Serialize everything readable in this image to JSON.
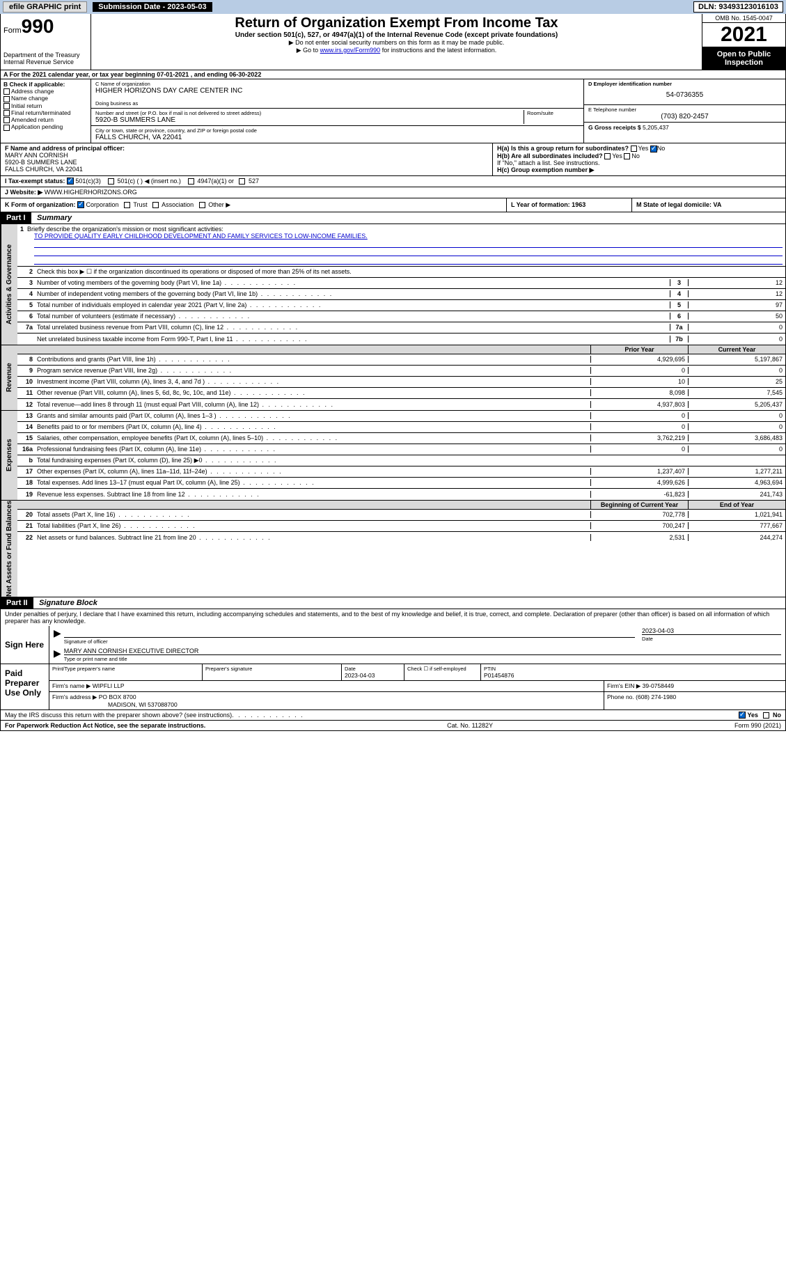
{
  "topbar": {
    "efile": "efile GRAPHIC print",
    "submission": "Submission Date - 2023-05-03",
    "dln": "DLN: 93493123016103"
  },
  "header": {
    "form_label": "Form",
    "form_num": "990",
    "dept": "Department of the Treasury",
    "irs": "Internal Revenue Service",
    "title": "Return of Organization Exempt From Income Tax",
    "sub": "Under section 501(c), 527, or 4947(a)(1) of the Internal Revenue Code (except private foundations)",
    "note1": "▶ Do not enter social security numbers on this form as it may be made public.",
    "note2_pre": "▶ Go to ",
    "note2_link": "www.irs.gov/Form990",
    "note2_post": " for instructions and the latest information.",
    "omb": "OMB No. 1545-0047",
    "year": "2021",
    "inspect": "Open to Public Inspection"
  },
  "row_a": "A For the 2021 calendar year, or tax year beginning 07-01-2021 , and ending 06-30-2022",
  "col_b": {
    "hdr": "B Check if applicable:",
    "items": [
      "Address change",
      "Name change",
      "Initial return",
      "Final return/terminated",
      "Amended return",
      "Application pending"
    ]
  },
  "col_c": {
    "label_name": "C Name of organization",
    "name": "HIGHER HORIZONS DAY CARE CENTER INC",
    "dba": "Doing business as",
    "label_addr": "Number and street (or P.O. box if mail is not delivered to street address)",
    "room": "Room/suite",
    "addr": "5920-B SUMMERS LANE",
    "label_city": "City or town, state or province, country, and ZIP or foreign postal code",
    "city": "FALLS CHURCH, VA  22041"
  },
  "col_de": {
    "d_label": "D Employer identification number",
    "d_val": "54-0736355",
    "e_label": "E Telephone number",
    "e_val": "(703) 820-2457",
    "g_label": "G Gross receipts $",
    "g_val": "5,205,437"
  },
  "row_f": {
    "label": "F Name and address of principal officer:",
    "name": "MARY ANN CORNISH",
    "addr1": "5920-B SUMMERS LANE",
    "addr2": "FALLS CHURCH, VA  22041",
    "ha": "H(a)  Is this a group return for subordinates?",
    "ha_yes": "Yes",
    "ha_no": "No",
    "hb": "H(b)  Are all subordinates included?",
    "hb_note": "If \"No,\" attach a list. See instructions.",
    "hc": "H(c)  Group exemption number ▶"
  },
  "row_i": {
    "label": "I   Tax-exempt status:",
    "opt1": "501(c)(3)",
    "opt2": "501(c) (  ) ◀ (insert no.)",
    "opt3": "4947(a)(1) or",
    "opt4": "527"
  },
  "row_j": {
    "label": "J   Website: ▶",
    "val": "WWW.HIGHERHORIZONS.ORG"
  },
  "row_k": {
    "label": "K Form of organization:",
    "corp": "Corporation",
    "trust": "Trust",
    "assoc": "Association",
    "other": "Other ▶",
    "l": "L Year of formation: 1963",
    "m": "M State of legal domicile: VA"
  },
  "part1": {
    "hdr": "Part I",
    "title": "Summary",
    "tabs": {
      "gov": "Activities & Governance",
      "rev": "Revenue",
      "exp": "Expenses",
      "net": "Net Assets or Fund Balances"
    },
    "line1_label": "Briefly describe the organization's mission or most significant activities:",
    "line1_val": "TO PROVIDE QUALITY EARLY CHILDHOOD DEVELOPMENT AND FAMILY SERVICES TO LOW-INCOME FAMILIES.",
    "line2": "Check this box ▶ ☐  if the organization discontinued its operations or disposed of more than 25% of its net assets.",
    "lines_gov": [
      {
        "no": "3",
        "txt": "Number of voting members of the governing body (Part VI, line 1a)",
        "box": "3",
        "val": "12"
      },
      {
        "no": "4",
        "txt": "Number of independent voting members of the governing body (Part VI, line 1b)",
        "box": "4",
        "val": "12"
      },
      {
        "no": "5",
        "txt": "Total number of individuals employed in calendar year 2021 (Part V, line 2a)",
        "box": "5",
        "val": "97"
      },
      {
        "no": "6",
        "txt": "Total number of volunteers (estimate if necessary)",
        "box": "6",
        "val": "50"
      },
      {
        "no": "7a",
        "txt": "Total unrelated business revenue from Part VIII, column (C), line 12",
        "box": "7a",
        "val": "0"
      },
      {
        "no": "",
        "txt": "Net unrelated business taxable income from Form 990-T, Part I, line 11",
        "box": "7b",
        "val": "0"
      }
    ],
    "col_prior": "Prior Year",
    "col_current": "Current Year",
    "lines_rev": [
      {
        "no": "8",
        "txt": "Contributions and grants (Part VIII, line 1h)",
        "p": "4,929,695",
        "c": "5,197,867"
      },
      {
        "no": "9",
        "txt": "Program service revenue (Part VIII, line 2g)",
        "p": "0",
        "c": "0"
      },
      {
        "no": "10",
        "txt": "Investment income (Part VIII, column (A), lines 3, 4, and 7d )",
        "p": "10",
        "c": "25"
      },
      {
        "no": "11",
        "txt": "Other revenue (Part VIII, column (A), lines 5, 6d, 8c, 9c, 10c, and 11e)",
        "p": "8,098",
        "c": "7,545"
      },
      {
        "no": "12",
        "txt": "Total revenue—add lines 8 through 11 (must equal Part VIII, column (A), line 12)",
        "p": "4,937,803",
        "c": "5,205,437"
      }
    ],
    "lines_exp": [
      {
        "no": "13",
        "txt": "Grants and similar amounts paid (Part IX, column (A), lines 1–3 )",
        "p": "0",
        "c": "0"
      },
      {
        "no": "14",
        "txt": "Benefits paid to or for members (Part IX, column (A), line 4)",
        "p": "0",
        "c": "0"
      },
      {
        "no": "15",
        "txt": "Salaries, other compensation, employee benefits (Part IX, column (A), lines 5–10)",
        "p": "3,762,219",
        "c": "3,686,483"
      },
      {
        "no": "16a",
        "txt": "Professional fundraising fees (Part IX, column (A), line 11e)",
        "p": "0",
        "c": "0"
      },
      {
        "no": "b",
        "txt": "Total fundraising expenses (Part IX, column (D), line 25) ▶0",
        "p": "",
        "c": "",
        "shade": true
      },
      {
        "no": "17",
        "txt": "Other expenses (Part IX, column (A), lines 11a–11d, 11f–24e)",
        "p": "1,237,407",
        "c": "1,277,211"
      },
      {
        "no": "18",
        "txt": "Total expenses. Add lines 13–17 (must equal Part IX, column (A), line 25)",
        "p": "4,999,626",
        "c": "4,963,694"
      },
      {
        "no": "19",
        "txt": "Revenue less expenses. Subtract line 18 from line 12",
        "p": "-61,823",
        "c": "241,743"
      }
    ],
    "col_begin": "Beginning of Current Year",
    "col_end": "End of Year",
    "lines_net": [
      {
        "no": "20",
        "txt": "Total assets (Part X, line 16)",
        "p": "702,778",
        "c": "1,021,941"
      },
      {
        "no": "21",
        "txt": "Total liabilities (Part X, line 26)",
        "p": "700,247",
        "c": "777,667"
      },
      {
        "no": "22",
        "txt": "Net assets or fund balances. Subtract line 21 from line 20",
        "p": "2,531",
        "c": "244,274"
      }
    ]
  },
  "part2": {
    "hdr": "Part II",
    "title": "Signature Block",
    "decl": "Under penalties of perjury, I declare that I have examined this return, including accompanying schedules and statements, and to the best of my knowledge and belief, it is true, correct, and complete. Declaration of preparer (other than officer) is based on all information of which preparer has any knowledge.",
    "sign_here": "Sign Here",
    "sig_of_officer": "Signature of officer",
    "sig_date": "2023-04-03",
    "date_label": "Date",
    "officer_name": "MARY ANN CORNISH  EXECUTIVE DIRECTOR",
    "type_name": "Type or print name and title",
    "paid": "Paid Preparer Use Only",
    "prep_name_label": "Print/Type preparer's name",
    "prep_sig_label": "Preparer's signature",
    "prep_date": "2023-04-03",
    "check_self": "Check ☐ if self-employed",
    "ptin_label": "PTIN",
    "ptin": "P01454876",
    "firm_name_label": "Firm's name    ▶",
    "firm_name": "WIPFLI LLP",
    "firm_ein_label": "Firm's EIN ▶",
    "firm_ein": "39-0758449",
    "firm_addr_label": "Firm's address ▶",
    "firm_addr": "PO BOX 8700",
    "firm_addr2": "MADISON, WI  537088700",
    "phone_label": "Phone no.",
    "phone": "(608) 274-1980",
    "discuss": "May the IRS discuss this return with the preparer shown above? (see instructions)",
    "yes": "Yes",
    "no": "No"
  },
  "footer": {
    "left": "For Paperwork Reduction Act Notice, see the separate instructions.",
    "mid": "Cat. No. 11282Y",
    "right": "Form 990 (2021)"
  }
}
